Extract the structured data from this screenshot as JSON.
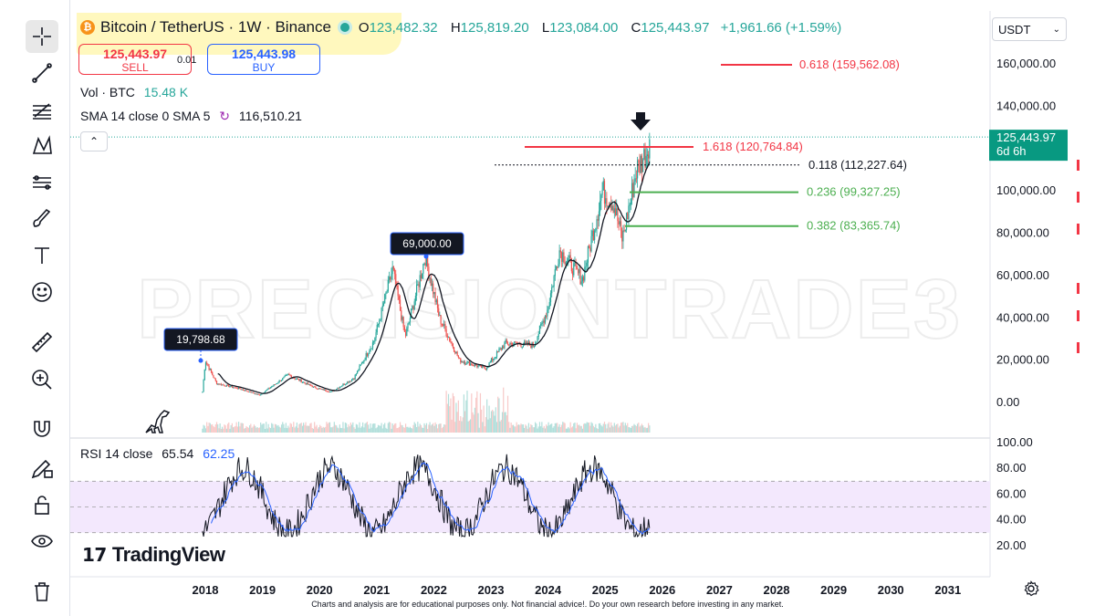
{
  "header": {
    "symbol": "Bitcoin / TetherUS · 1W · Binance",
    "logo_icon": "bitcoin-icon",
    "ohlc": {
      "o_label": "O",
      "o": "123,482.32",
      "h_label": "H",
      "h": "125,819.20",
      "l_label": "L",
      "l": "123,084.00",
      "c_label": "C",
      "c": "125,443.97",
      "change": "+1,961.66 (+1.59%)"
    },
    "highlight_color": "#fff6a8"
  },
  "trade": {
    "sell_price": "125,443.97",
    "sell_label": "SELL",
    "spread": "0.01",
    "buy_price": "125,443.98",
    "buy_label": "BUY"
  },
  "indicators": {
    "vol_label": "Vol · BTC",
    "vol_value": "15.48 K",
    "sma_label": "SMA 14 close 0 SMA 5",
    "sma_value": "116,510.21",
    "rsi_label": "RSI 14 close",
    "rsi_value1": "65.54",
    "rsi_value2": "62.25"
  },
  "currency_select": "USDT",
  "price_axis": [
    "160,000.00",
    "140,000.00",
    "100,000.00",
    "80,000.00",
    "60,000.00",
    "40,000.00",
    "20,000.00",
    "0.00"
  ],
  "current_price": {
    "value": "125,443.97",
    "countdown": "6d 6h",
    "color": "#089981"
  },
  "rsi_axis": [
    "100.00",
    "80.00",
    "60.00",
    "40.00",
    "20.00"
  ],
  "time_axis": [
    "2018",
    "2019",
    "2020",
    "2021",
    "2022",
    "2023",
    "2024",
    "2025",
    "2026",
    "2027",
    "2028",
    "2029",
    "2030",
    "2031"
  ],
  "fib_levels": [
    {
      "label": "0.618 (159,562.08)",
      "value": 159562.08,
      "color": "#f23645"
    },
    {
      "label": "1.618 (120,764.84)",
      "value": 120764.84,
      "color": "#f23645"
    },
    {
      "label": "0.118 (112,227.64)",
      "value": 112227.64,
      "color": "#131722"
    },
    {
      "label": "0.236 (99,327.25)",
      "value": 99327.25,
      "color": "#4caf50"
    },
    {
      "label": "0.382 (83,365.74)",
      "value": 83365.74,
      "color": "#4caf50"
    }
  ],
  "callouts": [
    {
      "text": "19,798.68",
      "value": 19798.68
    },
    {
      "text": "69,000.00",
      "value": 69000.0
    }
  ],
  "watermark": "PRECISIONTRADE3",
  "brand": "TradingView",
  "disclaimer": "Charts and analysis are for educational purposes only. Not financial advice!. Do your own research before investing in any market.",
  "colors": {
    "up": "#26a69a",
    "down": "#ef5350",
    "sma": "#131722",
    "rsi": "#131722",
    "rsi_ma": "#2962ff",
    "rsi_band": "#f3e8fd"
  },
  "toolbar_icons": [
    "crosshair-icon",
    "trend-line-icon",
    "fib-icon",
    "pattern-icon",
    "forecast-icon",
    "brush-icon",
    "text-icon",
    "emoji-icon",
    "ruler-icon",
    "zoom-in-icon",
    "magnet-icon",
    "pencil-lock-icon",
    "lock-icon",
    "eye-icon",
    "trash-icon"
  ]
}
